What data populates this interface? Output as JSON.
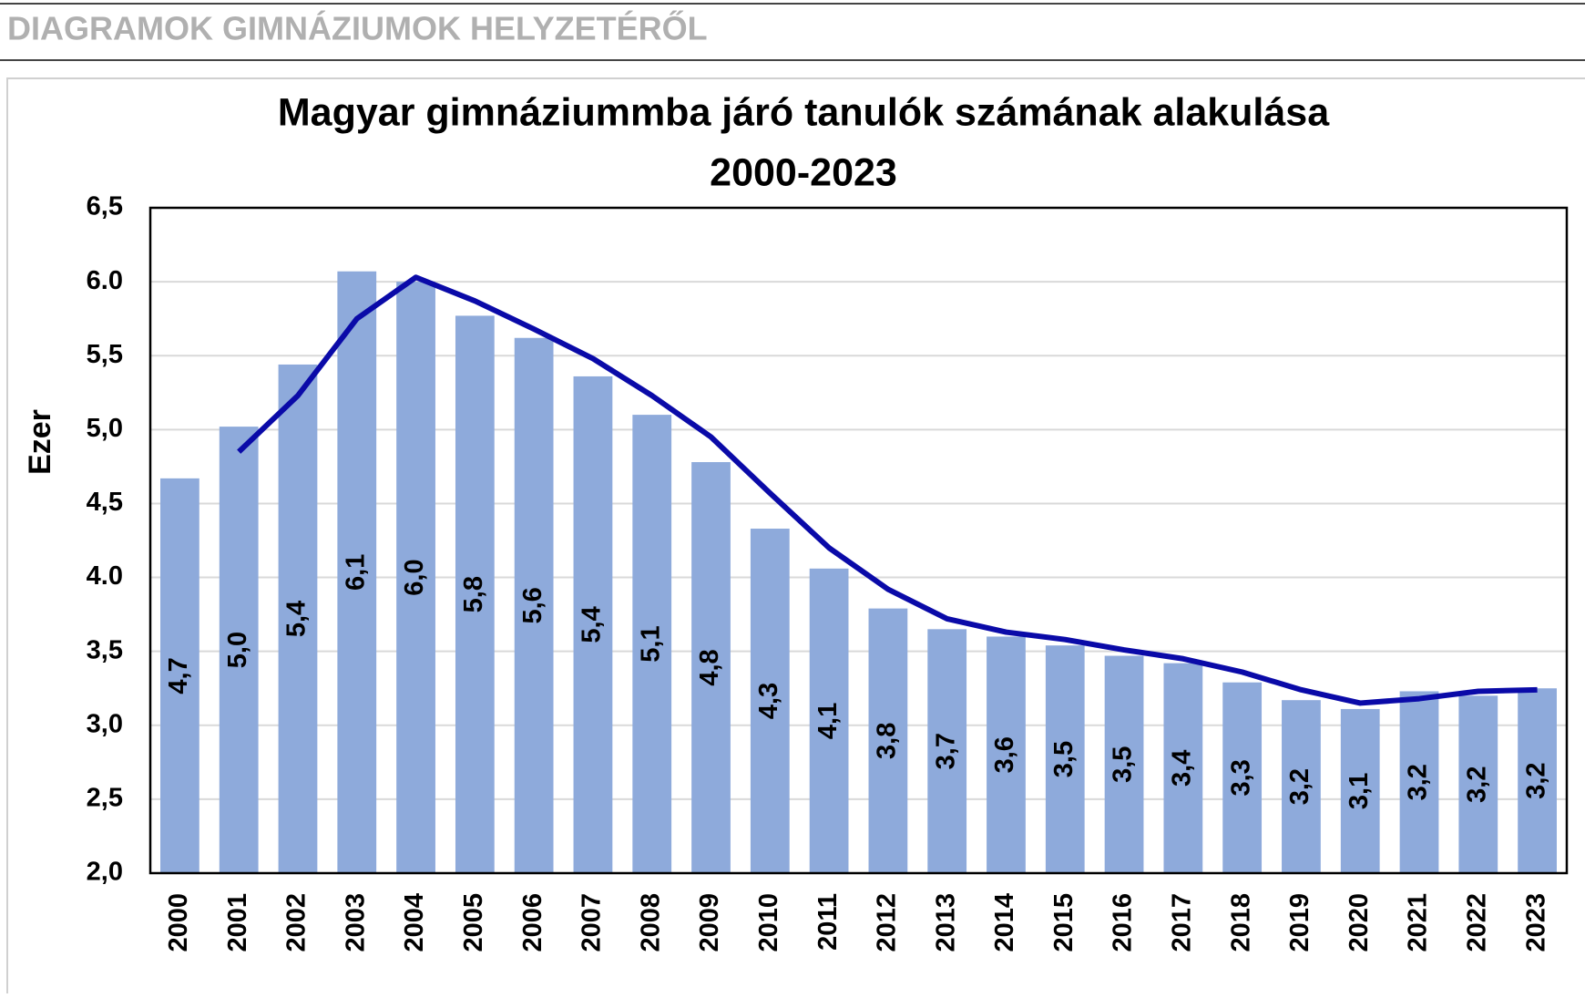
{
  "header": {
    "title": "DIAGRAMOK GIMNÁZIUMOK HELYZETÉRŐL"
  },
  "chart_data": {
    "type": "bar",
    "title": "Magyar gimnáziummba járó tanulók számának alakulása",
    "subtitle": "2000-2023",
    "ylabel": "Ezer",
    "categories": [
      "2000",
      "2001",
      "2002",
      "2003",
      "2004",
      "2005",
      "2006",
      "2007",
      "2008",
      "2009",
      "2010",
      "2011",
      "2012",
      "2013",
      "2014",
      "2015",
      "2016",
      "2017",
      "2018",
      "2019",
      "2020",
      "2021",
      "2022",
      "2023"
    ],
    "series": [
      {
        "type": "bar",
        "color": "#8eaadb",
        "values": [
          4.67,
          5.02,
          5.44,
          6.07,
          6.0,
          5.77,
          5.62,
          5.36,
          5.1,
          4.78,
          4.33,
          4.06,
          3.79,
          3.65,
          3.6,
          3.54,
          3.47,
          3.42,
          3.29,
          3.17,
          3.11,
          3.23,
          3.2,
          3.25
        ],
        "value_labels": [
          "4,7",
          "5,0",
          "5,4",
          "6,1",
          "6,0",
          "5,8",
          "5,6",
          "5,4",
          "5,1",
          "4,8",
          "4,3",
          "4,1",
          "3,8",
          "3,7",
          "3,6",
          "3,5",
          "3,5",
          "3,4",
          "3,3",
          "3,2",
          "3,1",
          "3,2",
          "3,2",
          "3,2"
        ]
      },
      {
        "type": "line",
        "color": "#0a0aa8",
        "values": [
          null,
          4.85,
          5.23,
          5.75,
          6.03,
          5.87,
          5.68,
          5.48,
          5.23,
          4.95,
          4.57,
          4.2,
          3.92,
          3.72,
          3.63,
          3.58,
          3.51,
          3.45,
          3.36,
          3.24,
          3.15,
          3.18,
          3.23,
          3.24
        ]
      }
    ],
    "ylim": [
      2.0,
      6.5
    ],
    "yticks": [
      {
        "value": 2.0,
        "label": "2,0"
      },
      {
        "value": 2.5,
        "label": "2,5"
      },
      {
        "value": 3.0,
        "label": "3,0"
      },
      {
        "value": 3.5,
        "label": "3,5"
      },
      {
        "value": 4.0,
        "label": "4.0"
      },
      {
        "value": 4.5,
        "label": "4,5"
      },
      {
        "value": 5.0,
        "label": "5,0"
      },
      {
        "value": 5.5,
        "label": "5,5"
      },
      {
        "value": 6.0,
        "label": "6.0"
      },
      {
        "value": 6.5,
        "label": "6,5"
      }
    ],
    "grid": true
  }
}
